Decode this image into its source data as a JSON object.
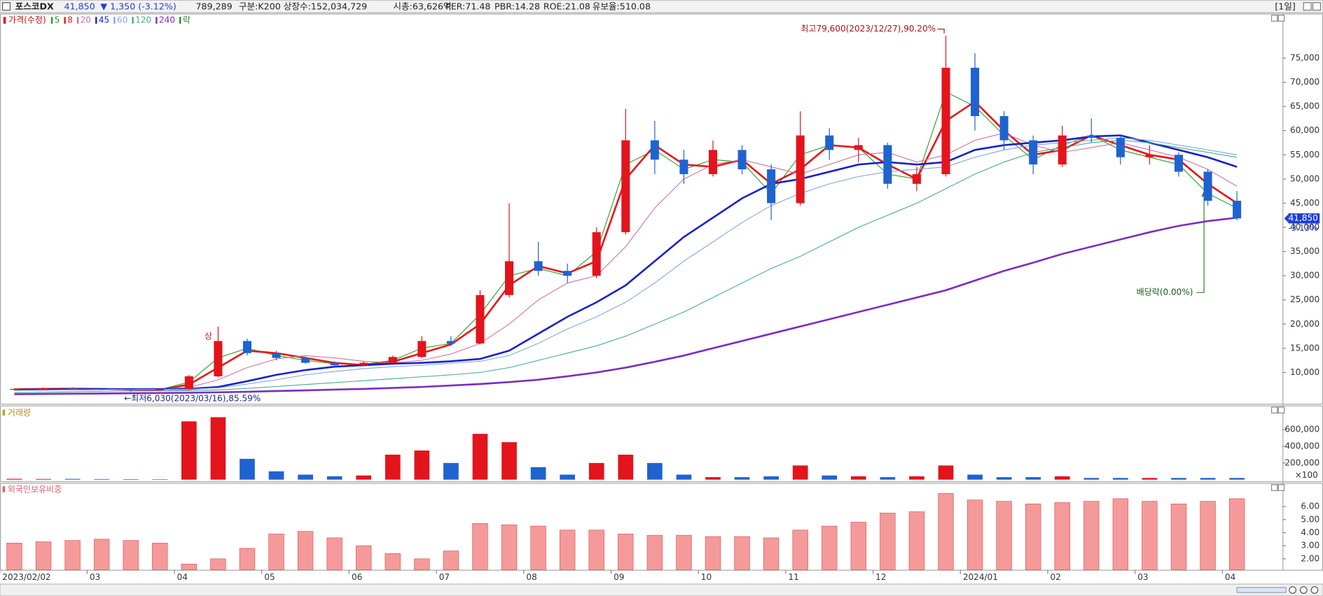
{
  "header": {
    "name": "포스코DX",
    "price": "41,850",
    "change": "▼ 1,350 (-3.12%)",
    "volume": "789,289",
    "group": "구분:K200",
    "shares": "상장수:152,034,729",
    "mcap": "시총:63,626억",
    "per": "PER:71.48",
    "pbr": "PBR:14.28",
    "roe": "ROE:21.08",
    "reserve": "유보율:510.08",
    "period": "[1일]"
  },
  "chart_data": [
    {
      "type": "candlestick",
      "categories": [
        "2023/02/02",
        null,
        null,
        "03",
        null,
        null,
        "04",
        null,
        null,
        "05",
        null,
        null,
        "06",
        null,
        null,
        "07",
        null,
        null,
        "08",
        null,
        null,
        "09",
        null,
        null,
        "10",
        null,
        null,
        "11",
        null,
        null,
        "12",
        null,
        null,
        "2024/01",
        null,
        null,
        "02",
        null,
        null,
        "03",
        null,
        null,
        "04"
      ],
      "ohlc": {
        "name": "가격(수정)",
        "up_color": "#e3141c",
        "down_color": "#1f63d1",
        "open": [
          6400,
          6600,
          6700,
          6600,
          6500,
          6300,
          6600,
          9200,
          16500,
          14000,
          13000,
          12000,
          11500,
          12000,
          13200,
          16500,
          16000,
          26000,
          33000,
          31000,
          30000,
          39000,
          58000,
          54000,
          51000,
          56000,
          52000,
          45000,
          59000,
          56000,
          57000,
          49000,
          51000,
          73000,
          63000,
          58000,
          53000,
          59000,
          58500,
          54500,
          55000,
          51500,
          45500
        ],
        "high": [
          6700,
          6900,
          6900,
          6800,
          6600,
          6700,
          9500,
          19500,
          17000,
          14500,
          13300,
          12300,
          12300,
          13500,
          17500,
          17500,
          27000,
          45000,
          37000,
          32500,
          40000,
          64500,
          62000,
          56000,
          58000,
          57000,
          53000,
          64000,
          60500,
          58500,
          57500,
          52500,
          79600,
          76000,
          64000,
          59000,
          61000,
          62500,
          59000,
          57000,
          55500,
          52000,
          47500
        ],
        "low": [
          6300,
          6400,
          6500,
          6300,
          6030,
          6200,
          6500,
          9000,
          13500,
          12500,
          11800,
          11200,
          11300,
          11800,
          13000,
          15500,
          15800,
          25500,
          30000,
          28500,
          29500,
          38500,
          51000,
          49000,
          50500,
          51000,
          41500,
          44500,
          54000,
          53500,
          48000,
          47500,
          50500,
          60000,
          56000,
          51000,
          52500,
          57500,
          53000,
          53000,
          50500,
          44500,
          41500
        ],
        "close": [
          6600,
          6700,
          6600,
          6500,
          6300,
          6600,
          9200,
          16500,
          14000,
          13000,
          12000,
          11500,
          12000,
          13200,
          16500,
          16000,
          26000,
          33000,
          31000,
          30000,
          39000,
          58000,
          54000,
          51000,
          56000,
          52000,
          45000,
          59000,
          56000,
          57000,
          49000,
          51000,
          73000,
          63000,
          58000,
          53000,
          59000,
          58500,
          54500,
          55000,
          51500,
          45500,
          41850
        ]
      },
      "series": [
        {
          "name": "5",
          "color": "#22a022",
          "bold": false,
          "values": [
            6550,
            6650,
            6650,
            6550,
            6400,
            6450,
            8000,
            13000,
            15000,
            13500,
            12500,
            11800,
            11700,
            12500,
            15000,
            16000,
            22000,
            30000,
            31500,
            30000,
            35000,
            53000,
            56000,
            52000,
            54000,
            53500,
            47000,
            55000,
            57000,
            56500,
            51000,
            50000,
            68000,
            65000,
            59000,
            54000,
            57000,
            59000,
            56000,
            54500,
            53000,
            47000,
            44000
          ]
        },
        {
          "name": "8",
          "color": "#e31a1c",
          "bold": true,
          "values": [
            6500,
            6600,
            6650,
            6600,
            6450,
            6400,
            7500,
            11000,
            14500,
            14000,
            13000,
            12000,
            11500,
            12200,
            14000,
            15800,
            20000,
            28000,
            32000,
            30500,
            33000,
            50000,
            57000,
            53000,
            52500,
            54000,
            49000,
            52000,
            57000,
            56500,
            53000,
            50000,
            62000,
            66000,
            60000,
            55000,
            56000,
            59000,
            57000,
            55000,
            54000,
            49000,
            45000
          ]
        },
        {
          "name": "20",
          "color": "#d46fa3",
          "bold": false,
          "values": [
            6500,
            6550,
            6600,
            6620,
            6600,
            6550,
            6900,
            8500,
            11000,
            12800,
            13500,
            13000,
            12300,
            12000,
            12500,
            13800,
            16000,
            20000,
            25000,
            28500,
            30000,
            36000,
            44000,
            50000,
            53000,
            54000,
            52500,
            51000,
            53000,
            55000,
            55500,
            53500,
            55000,
            58000,
            59500,
            57000,
            55500,
            56500,
            57500,
            56000,
            54500,
            52000,
            48500
          ]
        },
        {
          "name": "45",
          "color": "#1a22c8",
          "bold": true,
          "values": [
            6400,
            6450,
            6500,
            6550,
            6550,
            6550,
            6600,
            7000,
            8200,
            9500,
            10500,
            11200,
            11500,
            11800,
            12000,
            12300,
            12800,
            14500,
            18000,
            21500,
            24500,
            28000,
            33000,
            38000,
            42000,
            46000,
            49000,
            50000,
            51500,
            53000,
            53500,
            53000,
            53500,
            56000,
            57000,
            57500,
            58000,
            58800,
            59000,
            57500,
            56000,
            54500,
            52500
          ]
        },
        {
          "name": "60",
          "color": "#7fa6e0",
          "bold": false,
          "values": [
            6300,
            6350,
            6400,
            6450,
            6500,
            6500,
            6550,
            6800,
            7600,
            8500,
            9500,
            10200,
            10800,
            11200,
            11500,
            11900,
            12300,
            13500,
            16000,
            19000,
            21500,
            24500,
            28500,
            33000,
            37000,
            41000,
            44500,
            47000,
            49000,
            50500,
            51500,
            52000,
            52500,
            54500,
            56000,
            57000,
            57500,
            58000,
            58500,
            58000,
            57000,
            56000,
            55000
          ]
        },
        {
          "name": "120",
          "color": "#45ad8c",
          "bold": false,
          "values": [
            5800,
            5900,
            6000,
            6100,
            6150,
            6200,
            6250,
            6400,
            6700,
            7100,
            7500,
            7900,
            8300,
            8700,
            9100,
            9500,
            10000,
            11000,
            12500,
            14000,
            15500,
            17500,
            20000,
            22500,
            25500,
            28500,
            31500,
            34000,
            37000,
            40000,
            42500,
            45000,
            48000,
            51000,
            53500,
            55500,
            56500,
            57500,
            58000,
            57500,
            56500,
            55500,
            54500
          ]
        },
        {
          "name": "240",
          "color": "#7a2fc0",
          "bold": true,
          "values": [
            5500,
            5550,
            5600,
            5650,
            5700,
            5750,
            5800,
            5900,
            6000,
            6150,
            6300,
            6450,
            6600,
            6800,
            7000,
            7300,
            7600,
            8000,
            8500,
            9200,
            10000,
            11000,
            12200,
            13500,
            15000,
            16500,
            18000,
            19500,
            21000,
            22500,
            24000,
            25500,
            27000,
            29000,
            31000,
            32700,
            34500,
            36000,
            37500,
            39000,
            40300,
            41300,
            42000
          ]
        }
      ],
      "ex_dividend_marker": "락",
      "ylim": [
        3700,
        84200
      ],
      "yticks": [
        {
          "value": 10000,
          "label": "10,000"
        },
        {
          "value": 15000,
          "label": "15,000"
        },
        {
          "value": 20000,
          "label": "20,000"
        },
        {
          "value": 25000,
          "label": "25,000"
        },
        {
          "value": 30000,
          "label": "30,000"
        },
        {
          "value": 35000,
          "label": "35,000"
        },
        {
          "value": 40000,
          "label": "40,000"
        },
        {
          "value": 45000,
          "label": "45,000"
        },
        {
          "value": 50000,
          "label": "50,000"
        },
        {
          "value": 55000,
          "label": "55,000"
        },
        {
          "value": 60000,
          "label": "60,000"
        },
        {
          "value": 65000,
          "label": "65,000"
        },
        {
          "value": 70000,
          "label": "70,000"
        },
        {
          "value": 75000,
          "label": "75,000"
        }
      ],
      "high_label": "최고79,600(2023/12/27),90.20%",
      "low_label": "←최저6,030(2023/03/16),85.59%",
      "limit_up_label": "상",
      "dividend_label": "배당락(0.00%)",
      "last_label": "41,850",
      "last_change_label": "-3.13%"
    },
    {
      "type": "bar",
      "title": "거래량",
      "unit_label": "×100",
      "up_color": "#e3141c",
      "down_color": "#1f63d1",
      "values": [
        10000,
        8000,
        9000,
        7000,
        6000,
        5000,
        700000,
        750000,
        250000,
        100000,
        60000,
        40000,
        50000,
        300000,
        350000,
        200000,
        550000,
        450000,
        150000,
        60000,
        200000,
        300000,
        200000,
        60000,
        30000,
        30000,
        40000,
        170000,
        50000,
        40000,
        30000,
        40000,
        170000,
        60000,
        30000,
        30000,
        40000,
        20000,
        20000,
        20000,
        20000,
        20000,
        20000
      ],
      "ylim": [
        -30000,
        800000
      ],
      "yticks": [
        {
          "value": 200000,
          "label": "200,000"
        },
        {
          "value": 400000,
          "label": "400,000"
        },
        {
          "value": 600000,
          "label": "600,000"
        }
      ]
    },
    {
      "type": "bar",
      "title": "외국인보유비중",
      "color": "#f59a9a",
      "values": [
        3.2,
        3.3,
        3.4,
        3.5,
        3.4,
        3.2,
        1.6,
        2.0,
        2.8,
        3.9,
        4.1,
        3.6,
        3.0,
        2.4,
        2.0,
        2.6,
        4.7,
        4.6,
        4.5,
        4.2,
        4.2,
        3.9,
        3.8,
        3.8,
        3.7,
        3.7,
        3.6,
        4.2,
        4.5,
        4.8,
        5.5,
        5.6,
        7.0,
        6.5,
        6.4,
        6.2,
        6.3,
        6.4,
        6.6,
        6.4,
        6.2,
        6.4,
        6.6
      ],
      "ylim": [
        1.16,
        7.35
      ],
      "yticks": [
        {
          "value": 2,
          "label": "2.00"
        },
        {
          "value": 3,
          "label": "3.00"
        },
        {
          "value": 4,
          "label": "4.00"
        },
        {
          "value": 5,
          "label": "5.00"
        },
        {
          "value": 6,
          "label": "6.00"
        }
      ]
    }
  ]
}
